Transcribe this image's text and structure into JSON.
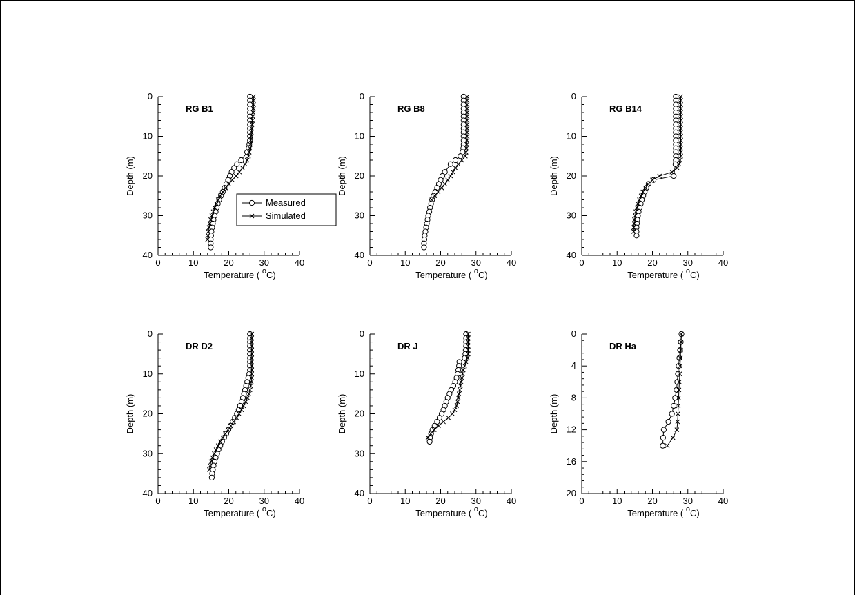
{
  "chart_data": [
    {
      "type": "line",
      "title": "RG B1",
      "xlabel": "Temperature (",
      "xlabel_sup": "o",
      "xlabel_unit": "C)",
      "ylabel": "Depth (m)",
      "xlim": [
        0,
        40
      ],
      "ylim": [
        0,
        40
      ],
      "y_inverted": true,
      "xticks": [
        "0",
        "10",
        "20",
        "30",
        "40"
      ],
      "yticks": [
        "0",
        "10",
        "20",
        "30",
        "40"
      ],
      "series": [
        {
          "name": "Measured",
          "marker": "circle",
          "x": [
            26,
            26,
            26,
            26,
            26,
            26,
            26,
            26,
            26,
            26,
            26,
            26,
            25.8,
            25.6,
            25.2,
            23.5,
            22.3,
            21.5,
            20.8,
            20.3,
            19.8,
            19.3,
            18.8,
            18.3,
            17.8,
            17.3,
            16.9,
            16.6,
            16.3,
            16,
            15.7,
            15.5,
            15.3,
            15.1,
            15,
            14.9,
            14.9,
            14.9
          ],
          "y": [
            0,
            1,
            2,
            3,
            4,
            5,
            6,
            7,
            8,
            9,
            10,
            11,
            12,
            13,
            14,
            16,
            17,
            18,
            19,
            20,
            21,
            22,
            23,
            24,
            25,
            26,
            27,
            28,
            29,
            30,
            31,
            32,
            33,
            34,
            35,
            36,
            37,
            38
          ]
        },
        {
          "name": "Simulated",
          "marker": "cross",
          "x": [
            27,
            27,
            27,
            27,
            26.9,
            26.8,
            26.7,
            26.6,
            26.5,
            26.4,
            26.3,
            26.2,
            26.1,
            26,
            25.8,
            25.6,
            25.2,
            24.6,
            23.9,
            23,
            22.1,
            21,
            20,
            19.1,
            18.3,
            17.6,
            17,
            16.5,
            16,
            15.6,
            15.2,
            14.9,
            14.6,
            14.4,
            14.2,
            14.1,
            14
          ],
          "y": [
            0,
            1,
            2,
            3,
            4,
            5,
            6,
            7,
            8,
            9,
            10,
            11,
            12,
            13,
            14,
            15,
            16,
            17,
            18,
            19,
            20,
            21,
            22,
            23,
            24,
            25,
            26,
            27,
            28,
            29,
            30,
            31,
            32,
            33,
            34,
            35,
            36
          ]
        }
      ],
      "legend": {
        "entries": [
          "Measured",
          "Simulated"
        ],
        "placement": "right"
      }
    },
    {
      "type": "line",
      "title": "RG B8",
      "xlabel": "Temperature (",
      "xlabel_sup": "o",
      "xlabel_unit": "C)",
      "ylabel": "Depth (m)",
      "xlim": [
        0,
        40
      ],
      "ylim": [
        0,
        40
      ],
      "y_inverted": true,
      "xticks": [
        "0",
        "10",
        "20",
        "30",
        "40"
      ],
      "yticks": [
        "0",
        "10",
        "20",
        "30",
        "40"
      ],
      "series": [
        {
          "name": "Measured",
          "marker": "circle",
          "x": [
            26.5,
            26.5,
            26.5,
            26.5,
            26.5,
            26.5,
            26.5,
            26.5,
            26.5,
            26.5,
            26.5,
            26.5,
            26.5,
            26.4,
            26.2,
            25.6,
            24.2,
            22.8,
            21.2,
            20.5,
            20,
            19.5,
            19,
            18.5,
            18,
            17.6,
            17.3,
            17,
            16.8,
            16.5,
            16.3,
            16.1,
            15.9,
            15.7,
            15.5,
            15.4,
            15.3,
            15.3
          ],
          "y": [
            0,
            1,
            2,
            3,
            4,
            5,
            6,
            7,
            8,
            9,
            10,
            11,
            12,
            13,
            14,
            15,
            16,
            17,
            19,
            20,
            21,
            22,
            23,
            24,
            25,
            26,
            27,
            28,
            29,
            30,
            31,
            32,
            33,
            34,
            35,
            36,
            37,
            38
          ]
        },
        {
          "name": "Simulated",
          "marker": "cross",
          "x": [
            27.5,
            27.5,
            27.5,
            27.5,
            27.5,
            27.5,
            27.5,
            27.5,
            27.5,
            27.5,
            27.5,
            27.5,
            27.4,
            27.3,
            27.2,
            27,
            26,
            25,
            24.2,
            23.5,
            22.8,
            22,
            21.2,
            20.3,
            19.3,
            18.3,
            17.5
          ],
          "y": [
            0,
            1,
            2,
            3,
            4,
            5,
            6,
            7,
            8,
            9,
            10,
            11,
            12,
            13,
            14,
            15,
            16,
            17,
            18,
            19,
            20,
            21,
            22,
            23,
            24,
            25,
            26
          ]
        }
      ]
    },
    {
      "type": "line",
      "title": "RG B14",
      "xlabel": "Temperature (",
      "xlabel_sup": "o",
      "xlabel_unit": "C)",
      "ylabel": "Depth (m)",
      "xlim": [
        0,
        40
      ],
      "ylim": [
        0,
        40
      ],
      "y_inverted": true,
      "xticks": [
        "0",
        "10",
        "20",
        "30",
        "40"
      ],
      "yticks": [
        "0",
        "10",
        "20",
        "30",
        "40"
      ],
      "series": [
        {
          "name": "Measured",
          "marker": "circle",
          "x": [
            26.6,
            26.6,
            26.6,
            26.6,
            26.6,
            26.6,
            26.6,
            26.6,
            26.6,
            26.6,
            26.6,
            26.6,
            26.6,
            26.6,
            26.6,
            26.6,
            26.6,
            26.5,
            26,
            20.3,
            18.9,
            18.3,
            17.8,
            17.4,
            17,
            16.7,
            16.4,
            16.1,
            15.9,
            15.7,
            15.6,
            15.5,
            15.5,
            15.5
          ],
          "y": [
            0,
            1,
            2,
            3,
            4,
            5,
            6,
            7,
            8,
            9,
            10,
            11,
            12,
            13,
            14,
            15,
            16,
            17,
            20,
            21,
            22,
            23,
            24,
            25,
            26,
            27,
            28,
            29,
            30,
            31,
            32,
            33,
            34,
            35
          ]
        },
        {
          "name": "Simulated",
          "marker": "cross",
          "x": [
            28,
            28,
            28,
            28,
            28,
            28,
            28,
            28,
            28,
            28,
            28,
            28,
            28,
            28,
            28,
            28,
            27.8,
            27.5,
            27,
            25.5,
            22,
            20,
            18.8,
            18,
            17.3,
            16.8,
            16.3,
            15.9,
            15.6,
            15.3,
            15.1,
            14.9,
            14.8,
            14.7,
            14.7
          ],
          "y": [
            0,
            1,
            2,
            3,
            4,
            5,
            6,
            7,
            8,
            9,
            10,
            11,
            12,
            13,
            14,
            15,
            16,
            17,
            18,
            19,
            20,
            21,
            22,
            23,
            24,
            25,
            26,
            27,
            28,
            29,
            30,
            31,
            32,
            33,
            34
          ]
        }
      ]
    },
    {
      "type": "line",
      "title": "DR D2",
      "xlabel": "Temperature (",
      "xlabel_sup": "o",
      "xlabel_unit": "C)",
      "ylabel": "Depth (m)",
      "xlim": [
        0,
        40
      ],
      "ylim": [
        0,
        40
      ],
      "y_inverted": true,
      "xticks": [
        "0",
        "10",
        "20",
        "30",
        "40"
      ],
      "yticks": [
        "0",
        "10",
        "20",
        "30",
        "40"
      ],
      "series": [
        {
          "name": "Measured",
          "marker": "circle",
          "x": [
            26,
            26,
            26,
            26,
            26,
            26,
            26,
            26,
            26,
            26,
            25.8,
            25.5,
            25.2,
            24.9,
            24.6,
            24.3,
            24,
            23.6,
            23.2,
            22.8,
            22.3,
            21.7,
            21.1,
            20.5,
            19.9,
            19.3,
            18.7,
            18.1,
            17.6,
            17.1,
            16.7,
            16.3,
            16,
            15.7,
            15.5,
            15.3,
            15.2
          ],
          "y": [
            0,
            1,
            2,
            3,
            4,
            5,
            6,
            7,
            8,
            9,
            10,
            11,
            12,
            13,
            14,
            15,
            16,
            17,
            18,
            19,
            20,
            21,
            22,
            23,
            24,
            25,
            26,
            27,
            28,
            29,
            30,
            31,
            32,
            33,
            34,
            35,
            36
          ]
        },
        {
          "name": "Simulated",
          "marker": "cross",
          "x": [
            26.5,
            26.5,
            26.5,
            26.5,
            26.5,
            26.5,
            26.5,
            26.5,
            26.5,
            26.5,
            26.5,
            26.5,
            26.4,
            26.2,
            26,
            25.7,
            25.3,
            24.8,
            24.2,
            23.6,
            22.9,
            22.2,
            21.4,
            20.6,
            19.8,
            19,
            18.3,
            17.6,
            17,
            16.4,
            15.9,
            15.4,
            15,
            14.7,
            14.5
          ],
          "y": [
            0,
            1,
            2,
            3,
            4,
            5,
            6,
            7,
            8,
            9,
            10,
            11,
            12,
            13,
            14,
            15,
            16,
            17,
            18,
            19,
            20,
            21,
            22,
            23,
            24,
            25,
            26,
            27,
            28,
            29,
            30,
            31,
            32,
            33,
            34
          ]
        }
      ]
    },
    {
      "type": "line",
      "title": "DR J",
      "xlabel": "Temperature (",
      "xlabel_sup": "o",
      "xlabel_unit": "C)",
      "ylabel": "Depth (m)",
      "xlim": [
        0,
        40
      ],
      "ylim": [
        0,
        40
      ],
      "y_inverted": true,
      "xticks": [
        "0",
        "10",
        "20",
        "30",
        "40"
      ],
      "yticks": [
        "0",
        "10",
        "20",
        "30",
        "40"
      ],
      "series": [
        {
          "name": "Measured",
          "marker": "circle",
          "x": [
            27.2,
            27.2,
            27.2,
            27.2,
            27.1,
            27,
            26.8,
            25.3,
            25.2,
            25,
            24.8,
            24.5,
            24.1,
            23.6,
            23,
            22.5,
            22,
            21.6,
            21.2,
            20.8,
            20.3,
            19.7,
            19,
            18.3,
            17.7,
            17.3,
            17,
            16.9
          ],
          "y": [
            0,
            1,
            2,
            3,
            4,
            5,
            6,
            7,
            8,
            9,
            10,
            11,
            12,
            13,
            14,
            15,
            16,
            17,
            18,
            19,
            20,
            21,
            22,
            23,
            24,
            25,
            26,
            27
          ]
        },
        {
          "name": "Simulated",
          "marker": "cross",
          "x": [
            27.8,
            27.8,
            27.8,
            27.8,
            27.8,
            27.8,
            27.6,
            27.2,
            26.8,
            26.4,
            26.2,
            26,
            25.8,
            25.6,
            25.4,
            25.2,
            25,
            24.8,
            24.5,
            24,
            23.3,
            22.2,
            20.8,
            19.4,
            18.2,
            17.2,
            16.4
          ],
          "y": [
            0,
            1,
            2,
            3,
            4,
            5,
            6,
            7,
            8,
            9,
            10,
            11,
            12,
            13,
            14,
            15,
            16,
            17,
            18,
            19,
            20,
            21,
            22,
            23,
            24,
            25,
            26
          ]
        }
      ]
    },
    {
      "type": "line",
      "title": "DR Ha",
      "xlabel": "Temperature (",
      "xlabel_sup": "o",
      "xlabel_unit": "C)",
      "ylabel": "Depth (m)",
      "xlim": [
        0,
        40
      ],
      "ylim": [
        0,
        20
      ],
      "y_inverted": true,
      "xticks": [
        "0",
        "10",
        "20",
        "30",
        "40"
      ],
      "yticks": [
        "0",
        "4",
        "8",
        "12",
        "16",
        "20"
      ],
      "series": [
        {
          "name": "Measured",
          "marker": "circle",
          "x": [
            28.2,
            28,
            27.8,
            27.6,
            27.4,
            27.2,
            27,
            26.8,
            26.4,
            26,
            25.5,
            24.5,
            23.2,
            23,
            22.9
          ],
          "y": [
            0,
            1,
            2,
            3,
            4,
            5,
            6,
            7,
            8,
            9,
            10,
            11,
            12,
            13,
            14
          ]
        },
        {
          "name": "Simulated",
          "marker": "cross",
          "x": [
            28.2,
            28.1,
            28,
            27.9,
            27.8,
            27.7,
            27.6,
            27.5,
            27.4,
            27.3,
            27.2,
            27.1,
            26.9,
            25.8,
            24.2
          ],
          "y": [
            0,
            1,
            2,
            3,
            4,
            5,
            6,
            7,
            8,
            9,
            10,
            11,
            12,
            13,
            14
          ]
        }
      ]
    }
  ]
}
